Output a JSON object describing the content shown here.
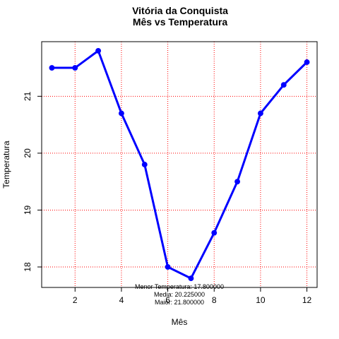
{
  "chart_data": {
    "type": "line",
    "title": "Vitória da Conquista",
    "subtitle": "Mês vs Temperatura",
    "xlabel": "Mês",
    "ylabel": "Temperatura",
    "x": [
      1,
      2,
      3,
      4,
      5,
      6,
      7,
      8,
      9,
      10,
      11,
      12
    ],
    "values": [
      21.5,
      21.5,
      21.8,
      20.7,
      19.8,
      18.0,
      17.8,
      18.6,
      19.5,
      20.7,
      21.2,
      21.6
    ],
    "xlim": [
      0.56,
      12.44
    ],
    "ylim": [
      17.64,
      21.96
    ],
    "xticks": [
      2,
      4,
      6,
      8,
      10,
      12
    ],
    "yticks": [
      18,
      19,
      20,
      21
    ],
    "grid": true,
    "line_color": "#0000ff",
    "grid_color": "#ff0000",
    "annotations": [
      "Menor Temperatura: 17.800000",
      "Media: 20.225000",
      "Maior: 21.800000"
    ]
  }
}
